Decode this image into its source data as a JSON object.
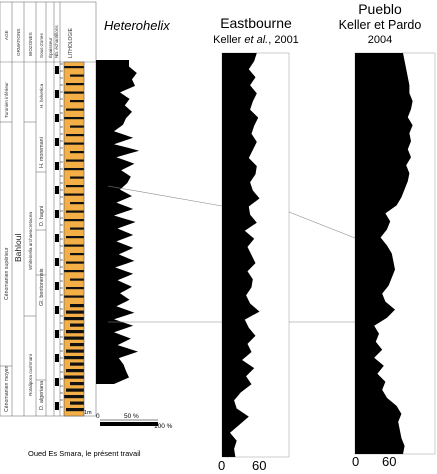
{
  "chart_data": [
    {
      "type": "area",
      "title": "Heterohelix",
      "site": "Oued Es Smara, le présent travail",
      "x_tick_labels": [
        "0",
        "50 %",
        "100 %"
      ],
      "xlim": [
        0,
        100
      ],
      "scale_label": "1m",
      "y": [
        0,
        2,
        4,
        6,
        8,
        10,
        12,
        14,
        16,
        18,
        20,
        22,
        24,
        26,
        28,
        30,
        32,
        34,
        36,
        38,
        40,
        42,
        44,
        46,
        48,
        50,
        52,
        54,
        56,
        58,
        60,
        62,
        64,
        66,
        68,
        70,
        72,
        74,
        76,
        78,
        80,
        82,
        84,
        86,
        88,
        90,
        92,
        94,
        96,
        98,
        100
      ],
      "values": [
        55,
        55,
        68,
        60,
        65,
        40,
        56,
        48,
        60,
        50,
        45,
        30,
        62,
        30,
        72,
        34,
        64,
        42,
        58,
        52,
        40,
        60,
        34,
        62,
        30,
        66,
        36,
        62,
        34,
        62,
        38,
        64,
        32,
        62,
        36,
        60,
        40,
        56,
        34,
        64,
        30,
        62,
        30,
        58,
        36,
        70,
        38,
        46,
        50,
        55,
        30
      ]
    },
    {
      "type": "area",
      "title": "Eastbourne",
      "subtitle_prefix": "Keller ",
      "subtitle_italic": "et al.",
      "subtitle_suffix": ", 2001",
      "x_tick_labels": [
        "0",
        "60"
      ],
      "xlim": [
        0,
        100
      ],
      "y": [
        0,
        2,
        4,
        6,
        8,
        10,
        12,
        14,
        16,
        18,
        20,
        22,
        24,
        26,
        28,
        30,
        32,
        34,
        36,
        38,
        40,
        42,
        44,
        46,
        48,
        50,
        52,
        54,
        56,
        58,
        60,
        62,
        64,
        66,
        68,
        70,
        72,
        74,
        76,
        78,
        80,
        82,
        84,
        86,
        88,
        90,
        92,
        94,
        96,
        98,
        100
      ],
      "values": [
        52,
        48,
        40,
        50,
        42,
        52,
        46,
        42,
        54,
        48,
        44,
        52,
        46,
        40,
        52,
        50,
        42,
        46,
        56,
        40,
        42,
        52,
        34,
        48,
        38,
        44,
        50,
        38,
        46,
        44,
        36,
        42,
        56,
        34,
        40,
        50,
        38,
        44,
        30,
        48,
        36,
        44,
        28,
        18,
        22,
        40,
        26,
        12,
        22,
        18,
        20
      ]
    },
    {
      "type": "area",
      "title": "Pueblo",
      "subtitle": "Keller et Pardo",
      "subtitle2": "2004",
      "x_tick_labels": [
        "0",
        "60"
      ],
      "xlim": [
        0,
        100
      ],
      "y": [
        0,
        2,
        4,
        6,
        8,
        10,
        12,
        14,
        16,
        18,
        20,
        22,
        24,
        26,
        28,
        30,
        32,
        34,
        36,
        38,
        40,
        42,
        44,
        46,
        48,
        50,
        52,
        54,
        56,
        58,
        60,
        62,
        64,
        66,
        68,
        70,
        72,
        74,
        76,
        78,
        80,
        82,
        84,
        86,
        88,
        90,
        92,
        94,
        96,
        98,
        100
      ],
      "values": [
        60,
        62,
        64,
        66,
        68,
        68,
        72,
        70,
        66,
        72,
        68,
        70,
        66,
        70,
        64,
        68,
        66,
        62,
        58,
        52,
        38,
        44,
        40,
        32,
        40,
        46,
        48,
        50,
        46,
        42,
        34,
        38,
        50,
        40,
        24,
        30,
        26,
        34,
        24,
        36,
        28,
        38,
        34,
        40,
        52,
        58,
        54,
        56,
        58,
        62,
        60
      ]
    }
  ],
  "strat_headers": [
    "AGE",
    "ORMATIONS",
    "BIOZONES",
    "Sous-Zones",
    "Épaisseur",
    "Nb. échantillons",
    "LITHOLOGIE"
  ],
  "age_upper": "Cénomanien supérieur",
  "age_lower": "Cénomanien moyen",
  "age_top": "Turonien inférieur",
  "formation": "Bahloul",
  "zone_upper": "Whiteinella archaeocretacea",
  "zone_lower": "Rotalipora cushmani",
  "subzones": [
    "H. helvetica",
    "H. moremani",
    "D. hagni",
    "Gl. bentonensis",
    "D. algeriana"
  ]
}
